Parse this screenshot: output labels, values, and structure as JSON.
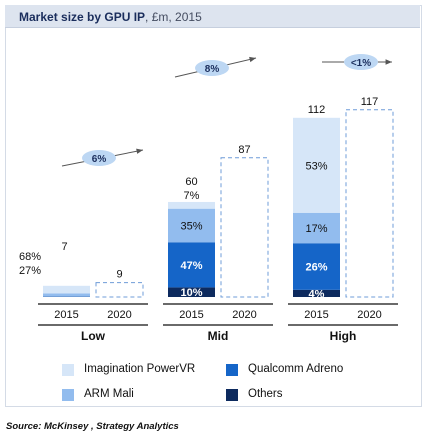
{
  "header": {
    "title": "Market size by GPU IP",
    "unit": ", £m, 2015"
  },
  "colors": {
    "imagination": "#d6e6f8",
    "arm": "#92bcee",
    "qualcomm": "#1565c8",
    "others": "#0d2a5e",
    "projected_border": "#6f9cd8",
    "growth_oval": "#bdd7f3",
    "axis": "#111111"
  },
  "chart_data": {
    "type": "bar",
    "stacked": true,
    "title": "Market size by GPU IP, £m, 2015",
    "groups": [
      {
        "name": "Low",
        "growth": "6%",
        "bars": [
          {
            "year": "2015",
            "total": 7,
            "total_label": "7",
            "segments": [
              {
                "series": "Others",
                "share": 0.02,
                "label": ""
              },
              {
                "series": "Qualcomm Adreno",
                "share": 0.03,
                "label": ""
              },
              {
                "series": "ARM Mali",
                "share": 0.27,
                "label": "27%"
              },
              {
                "series": "Imagination PowerVR",
                "share": 0.68,
                "label": "68%"
              }
            ]
          },
          {
            "year": "2020",
            "total": 9,
            "total_label": "9",
            "projected": true,
            "segments": []
          }
        ]
      },
      {
        "name": "Mid",
        "growth": "8%",
        "bars": [
          {
            "year": "2015",
            "total": 60,
            "total_label": "60",
            "segments": [
              {
                "series": "Others",
                "share": 0.1,
                "label": "10%"
              },
              {
                "series": "Qualcomm Adreno",
                "share": 0.47,
                "label": "47%"
              },
              {
                "series": "ARM Mali",
                "share": 0.35,
                "label": "35%"
              },
              {
                "series": "Imagination PowerVR",
                "share": 0.07,
                "label": "7%"
              }
            ]
          },
          {
            "year": "2020",
            "total": 87,
            "total_label": "87",
            "projected": true,
            "segments": []
          }
        ]
      },
      {
        "name": "High",
        "growth": "<1%",
        "bars": [
          {
            "year": "2015",
            "total": 112,
            "total_label": "112",
            "segments": [
              {
                "series": "Others",
                "share": 0.04,
                "label": "4%"
              },
              {
                "series": "Qualcomm Adreno",
                "share": 0.26,
                "label": "26%"
              },
              {
                "series": "ARM Mali",
                "share": 0.17,
                "label": "17%"
              },
              {
                "series": "Imagination PowerVR",
                "share": 0.53,
                "label": "53%"
              }
            ]
          },
          {
            "year": "2020",
            "total": 117,
            "total_label": "117",
            "projected": true,
            "segments": []
          }
        ]
      }
    ],
    "legend": [
      {
        "name": "Imagination PowerVR",
        "color_key": "imagination"
      },
      {
        "name": "Qualcomm Adreno",
        "color_key": "qualcomm"
      },
      {
        "name": "ARM Mali",
        "color_key": "arm"
      },
      {
        "name": "Others",
        "color_key": "others"
      }
    ],
    "legend_position": "bottom"
  },
  "source": "Source: McKinsey , Strategy Analytics"
}
